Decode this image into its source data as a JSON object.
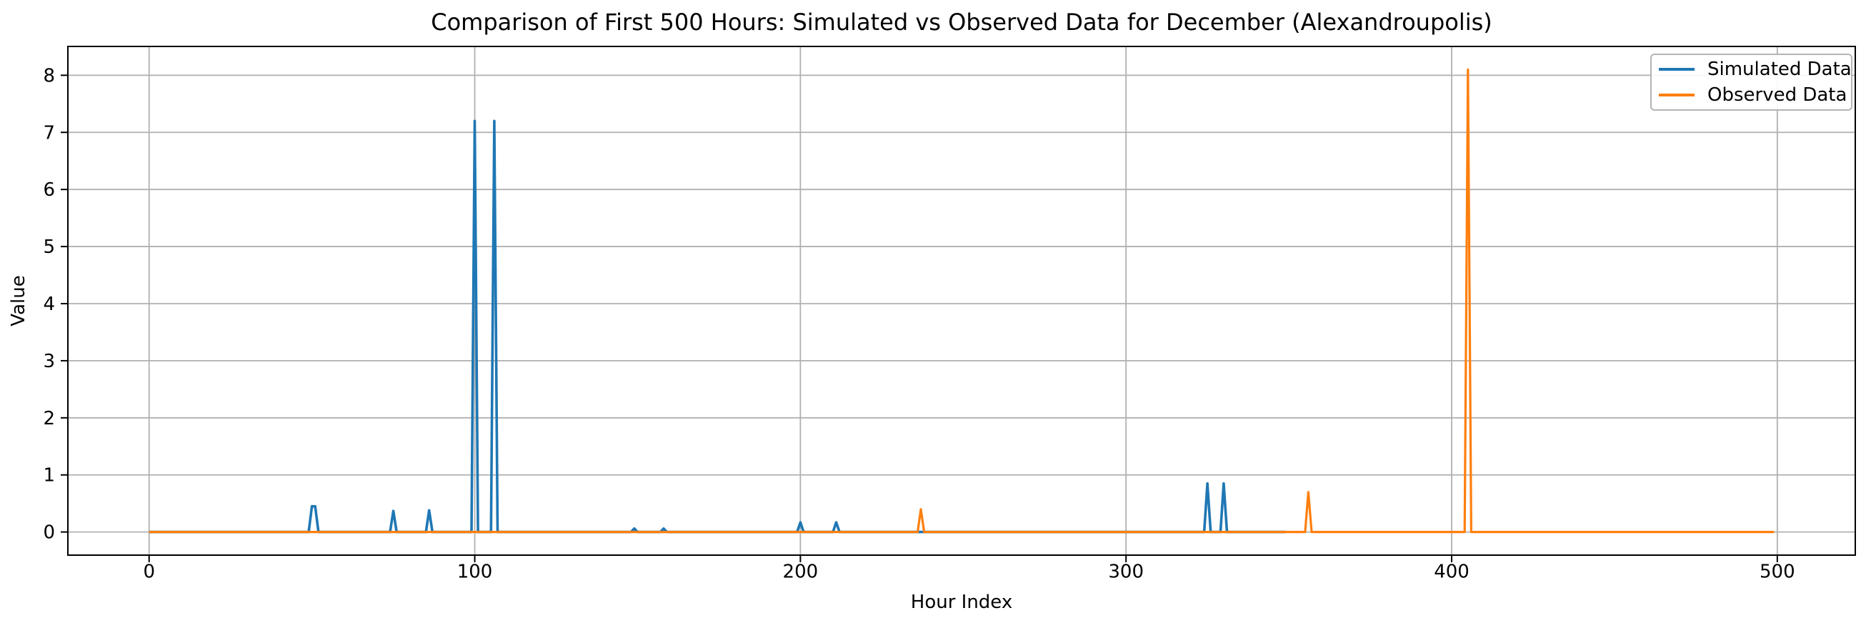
{
  "figure": {
    "background": "#ffffff"
  },
  "chart_data": {
    "type": "line",
    "title": "Comparison of First 500 Hours: Simulated vs Observed Data for December (Alexandroupolis)",
    "xlabel": "Hour Index",
    "ylabel": "Value",
    "xlim": [
      -24.95,
      523.95
    ],
    "ylim": [
      -0.405,
      8.505
    ],
    "xticks": [
      0,
      100,
      200,
      300,
      400,
      500
    ],
    "yticks": [
      0,
      1,
      2,
      3,
      4,
      5,
      6,
      7,
      8
    ],
    "grid": true,
    "grid_color": "#b0b0b0",
    "legend_position": "upper right",
    "series": [
      {
        "name": "Simulated Data",
        "color": "#1f77b4",
        "x_start": 0,
        "x_end": 349,
        "baseline": 0,
        "peaks": {
          "50": 0.45,
          "51": 0.45,
          "75": 0.37,
          "86": 0.38,
          "100": 7.2,
          "106": 7.2,
          "149": 0.06,
          "158": 0.06,
          "200": 0.17,
          "211": 0.17,
          "325": 0.85,
          "330": 0.85
        }
      },
      {
        "name": "Observed Data",
        "color": "#ff7f0e",
        "x_start": 0,
        "x_end": 499,
        "baseline": 0,
        "peaks": {
          "237": 0.4,
          "356": 0.7,
          "405": 8.1
        }
      }
    ]
  }
}
